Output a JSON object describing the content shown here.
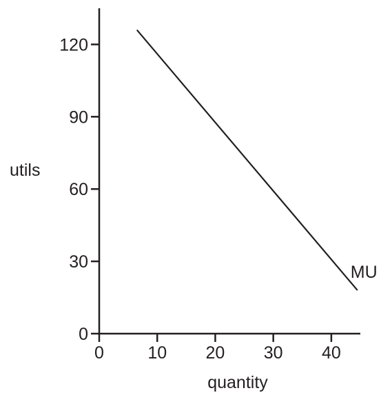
{
  "chart_data": {
    "type": "line",
    "title": "",
    "xlabel": "quantity",
    "ylabel": "utils",
    "xlim": [
      0,
      45
    ],
    "ylim": [
      0,
      135
    ],
    "x_ticks": [
      0,
      10,
      20,
      30,
      40
    ],
    "y_ticks": [
      0,
      30,
      60,
      90,
      120
    ],
    "grid": false,
    "series": [
      {
        "name": "MU",
        "color": "#231f20",
        "x": [
          6.5,
          44.5
        ],
        "y": [
          126,
          18
        ]
      }
    ]
  }
}
